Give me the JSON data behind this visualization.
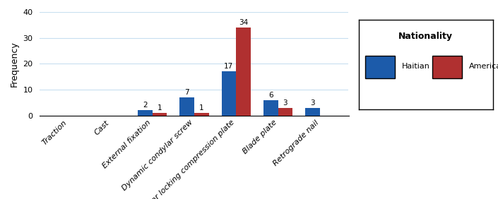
{
  "categories": [
    "Traction",
    "Cast",
    "External fixation",
    "Dynamic condylar screw",
    "Condylar locking compression plate",
    "Blade plate",
    "Retrograde nail"
  ],
  "haitian": [
    0,
    0,
    2,
    7,
    17,
    6,
    3
  ],
  "american": [
    0,
    0,
    1,
    1,
    34,
    3,
    0
  ],
  "haitian_color": "#1c5baa",
  "american_color": "#b03030",
  "ylabel": "Frequency",
  "ylim": [
    0,
    40
  ],
  "yticks": [
    0,
    10,
    20,
    30,
    40
  ],
  "legend_title": "Nationality",
  "legend_haitian": "Haitian",
  "legend_american": "American",
  "bar_width": 0.35,
  "background_color": "#ffffff",
  "grid_color": "#c8dff0"
}
